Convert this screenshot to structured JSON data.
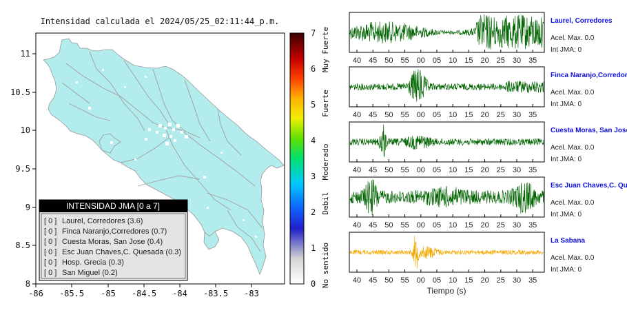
{
  "map": {
    "title": "Intensidad calculada el 2024/05/25_02:11:44_p.m.",
    "lon_ticks": [
      "-86",
      "-85.5",
      "-85",
      "-84.5",
      "-84",
      "-83.5",
      "-83"
    ],
    "lat_ticks": [
      "8",
      "8.5",
      "9",
      "9.5",
      "10",
      "10.5",
      "11"
    ],
    "land_color": "#b3ecec",
    "ocean_color": "#ffffff"
  },
  "colorbar": {
    "ticks": [
      "0",
      "1",
      "2",
      "3",
      "4",
      "5",
      "6",
      "7"
    ],
    "categories": [
      "No sentido",
      "Debil",
      "Moderado",
      "Fuerte",
      "Muy Fuerte"
    ]
  },
  "legend": {
    "title": "INTENSIDAD JMA [0 a 7]",
    "items": [
      {
        "value": "[ 0 ]",
        "name": "Laurel, Corredores (3.6)"
      },
      {
        "value": "[ 0 ]",
        "name": "Finca Naranjo,Corredores (0.7)"
      },
      {
        "value": "[ 0 ]",
        "name": "Cuesta Moras, San Jose (0.4)"
      },
      {
        "value": "[ 0 ]",
        "name": "Esc Juan Chaves,C. Quesada (0.3)"
      },
      {
        "value": "[ 0 ]",
        "name": "Hosp. Grecia (0.3)"
      },
      {
        "value": "[ 0 ]",
        "name": "San Miguel (0.2)"
      }
    ]
  },
  "chart_data": {
    "type": "line",
    "xlabel": "Tiempo (s)",
    "x_ticks": [
      "40",
      "45",
      "50",
      "55",
      "00",
      "05",
      "10",
      "15",
      "20",
      "25",
      "30",
      "35"
    ],
    "series": [
      {
        "name": "Laurel, Corredores",
        "accel": "Acel. Max. 0.0",
        "jma": "Int JMA: 0",
        "color": "#006400"
      },
      {
        "name": "Finca Naranjo,Corredores",
        "accel": "Acel. Max. 0.0",
        "jma": "Int JMA: 0",
        "color": "#006400"
      },
      {
        "name": "Cuesta Moras, San Jose",
        "accel": "Acel. Max. 0.0",
        "jma": "Int JMA: 0",
        "color": "#006400"
      },
      {
        "name": "Esc Juan Chaves,C. Quesada",
        "accel": "Acel. Max. 0.0",
        "jma": "Int JMA: 0",
        "color": "#006400"
      },
      {
        "name": "La Sabana",
        "accel": "Acel. Max. 0.0",
        "jma": "Int JMA: 0",
        "color": "#f5a800"
      }
    ]
  }
}
